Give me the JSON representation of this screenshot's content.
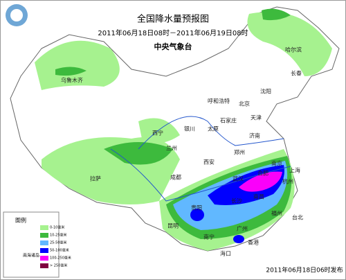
{
  "header": {
    "title": "全国降水量预报图",
    "period": "2011年06月18日08时－2011年06月19日08时",
    "issuer": "中央气象台"
  },
  "cities": [
    "乌鲁木齐",
    "哈尔滨",
    "长春",
    "沈阳",
    "呼和浩特",
    "北京",
    "天津",
    "石家庄",
    "太原",
    "济南",
    "银川",
    "西宁",
    "兰州",
    "郑州",
    "西安",
    "拉萨",
    "成都",
    "武汉",
    "合肥",
    "南京",
    "上海",
    "杭州",
    "南昌",
    "长沙",
    "福州",
    "台北",
    "贵阳",
    "昆明",
    "南宁",
    "广州",
    "香港",
    "海口"
  ],
  "legend": {
    "title": "图例",
    "items": [
      {
        "label": "0-10毫米",
        "color": "#a6f28f"
      },
      {
        "label": "10-25毫米",
        "color": "#3dba3d"
      },
      {
        "label": "25-50毫米",
        "color": "#61b8ff"
      },
      {
        "label": "50-100毫米",
        "color": "#0000fe"
      },
      {
        "label": "100-250毫米",
        "color": "#fa00fa"
      },
      {
        "label": "> 250毫米",
        "color": "#800040"
      }
    ]
  },
  "inset": {
    "label": "南海诸岛"
  },
  "footer": {
    "issued": "2011年06月18日06时发布"
  }
}
